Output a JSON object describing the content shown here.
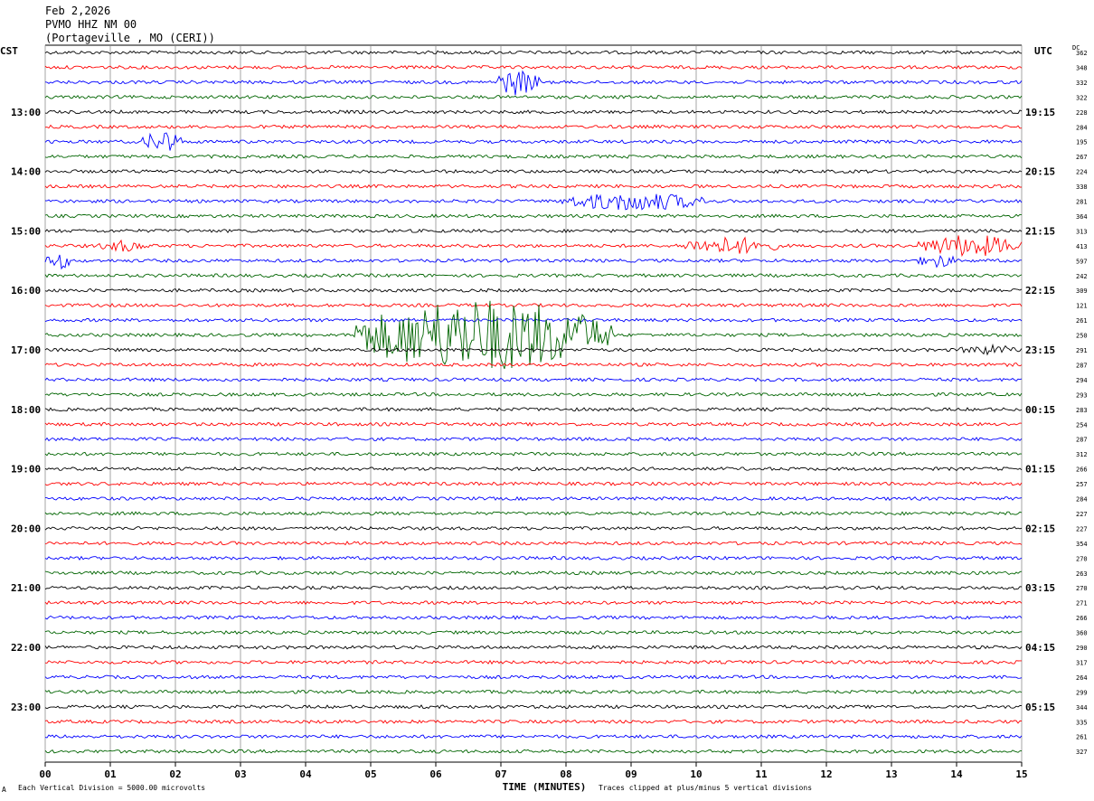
{
  "header": {
    "date": "Feb 2,2026",
    "station": "PVMO HHZ NM 00",
    "location": "(Portageville , MO (CERI))"
  },
  "labels": {
    "left_tz": "CST",
    "right_tz": "UTC",
    "dc": "DC"
  },
  "footer": {
    "scale": "Each Vertical Division = 5000.00 microvolts",
    "clip": "Traces clipped at plus/minus 5 vertical divisions",
    "mark": "A"
  },
  "colors": {
    "trace_cycle": [
      "#000000",
      "#ff0000",
      "#0000ff",
      "#006400"
    ],
    "grid": "#808080"
  },
  "chart_data": {
    "type": "line",
    "title": "PVMO HHZ NM 00",
    "xlabel": "TIME (MINUTES)",
    "ylabel": "",
    "xlim": [
      0,
      15
    ],
    "x_ticks": [
      "00",
      "01",
      "02",
      "03",
      "04",
      "05",
      "06",
      "07",
      "08",
      "09",
      "10",
      "11",
      "12",
      "13",
      "14",
      "15"
    ],
    "minutes_per_trace": 15,
    "trace_count": 48,
    "left_hour_labels": [
      "13:00",
      "14:00",
      "15:00",
      "16:00",
      "17:00",
      "18:00",
      "19:00",
      "20:00",
      "21:00",
      "22:00",
      "23:00"
    ],
    "right_hour_labels": [
      "19:15",
      "20:15",
      "21:15",
      "22:15",
      "23:15",
      "00:15",
      "01:15",
      "02:15",
      "03:15",
      "04:15",
      "05:15"
    ],
    "hour_label_trace_index": [
      4,
      8,
      12,
      16,
      20,
      24,
      28,
      32,
      36,
      40,
      44
    ],
    "dc_offsets": [
      362,
      348,
      332,
      322,
      228,
      284,
      195,
      267,
      224,
      338,
      281,
      364,
      313,
      413,
      597,
      242,
      309,
      121,
      261,
      250,
      291,
      287,
      294,
      293,
      283,
      254,
      287,
      312,
      266,
      257,
      284,
      227,
      227,
      354,
      270,
      263,
      270,
      271,
      266,
      360,
      290,
      317,
      264,
      299,
      344,
      335,
      261,
      327
    ],
    "events": [
      {
        "trace": 2,
        "minute_start": 6.9,
        "minute_end": 7.6,
        "amplitude": 1.8
      },
      {
        "trace": 6,
        "minute_start": 1.5,
        "minute_end": 2.1,
        "amplitude": 1.6
      },
      {
        "trace": 10,
        "minute_start": 7.9,
        "minute_end": 10.2,
        "amplitude": 1.3
      },
      {
        "trace": 13,
        "minute_start": 0.8,
        "minute_end": 1.6,
        "amplitude": 0.8
      },
      {
        "trace": 13,
        "minute_start": 9.7,
        "minute_end": 11.3,
        "amplitude": 1.2
      },
      {
        "trace": 13,
        "minute_start": 13.4,
        "minute_end": 15.0,
        "amplitude": 1.5
      },
      {
        "trace": 14,
        "minute_start": 0.0,
        "minute_end": 0.4,
        "amplitude": 1.2
      },
      {
        "trace": 14,
        "minute_start": 13.4,
        "minute_end": 14.0,
        "amplitude": 1.0
      },
      {
        "trace": 19,
        "minute_start": 4.7,
        "minute_end": 8.7,
        "amplitude": 5.0
      },
      {
        "trace": 20,
        "minute_start": 14.0,
        "minute_end": 15.0,
        "amplitude": 0.7
      }
    ]
  }
}
